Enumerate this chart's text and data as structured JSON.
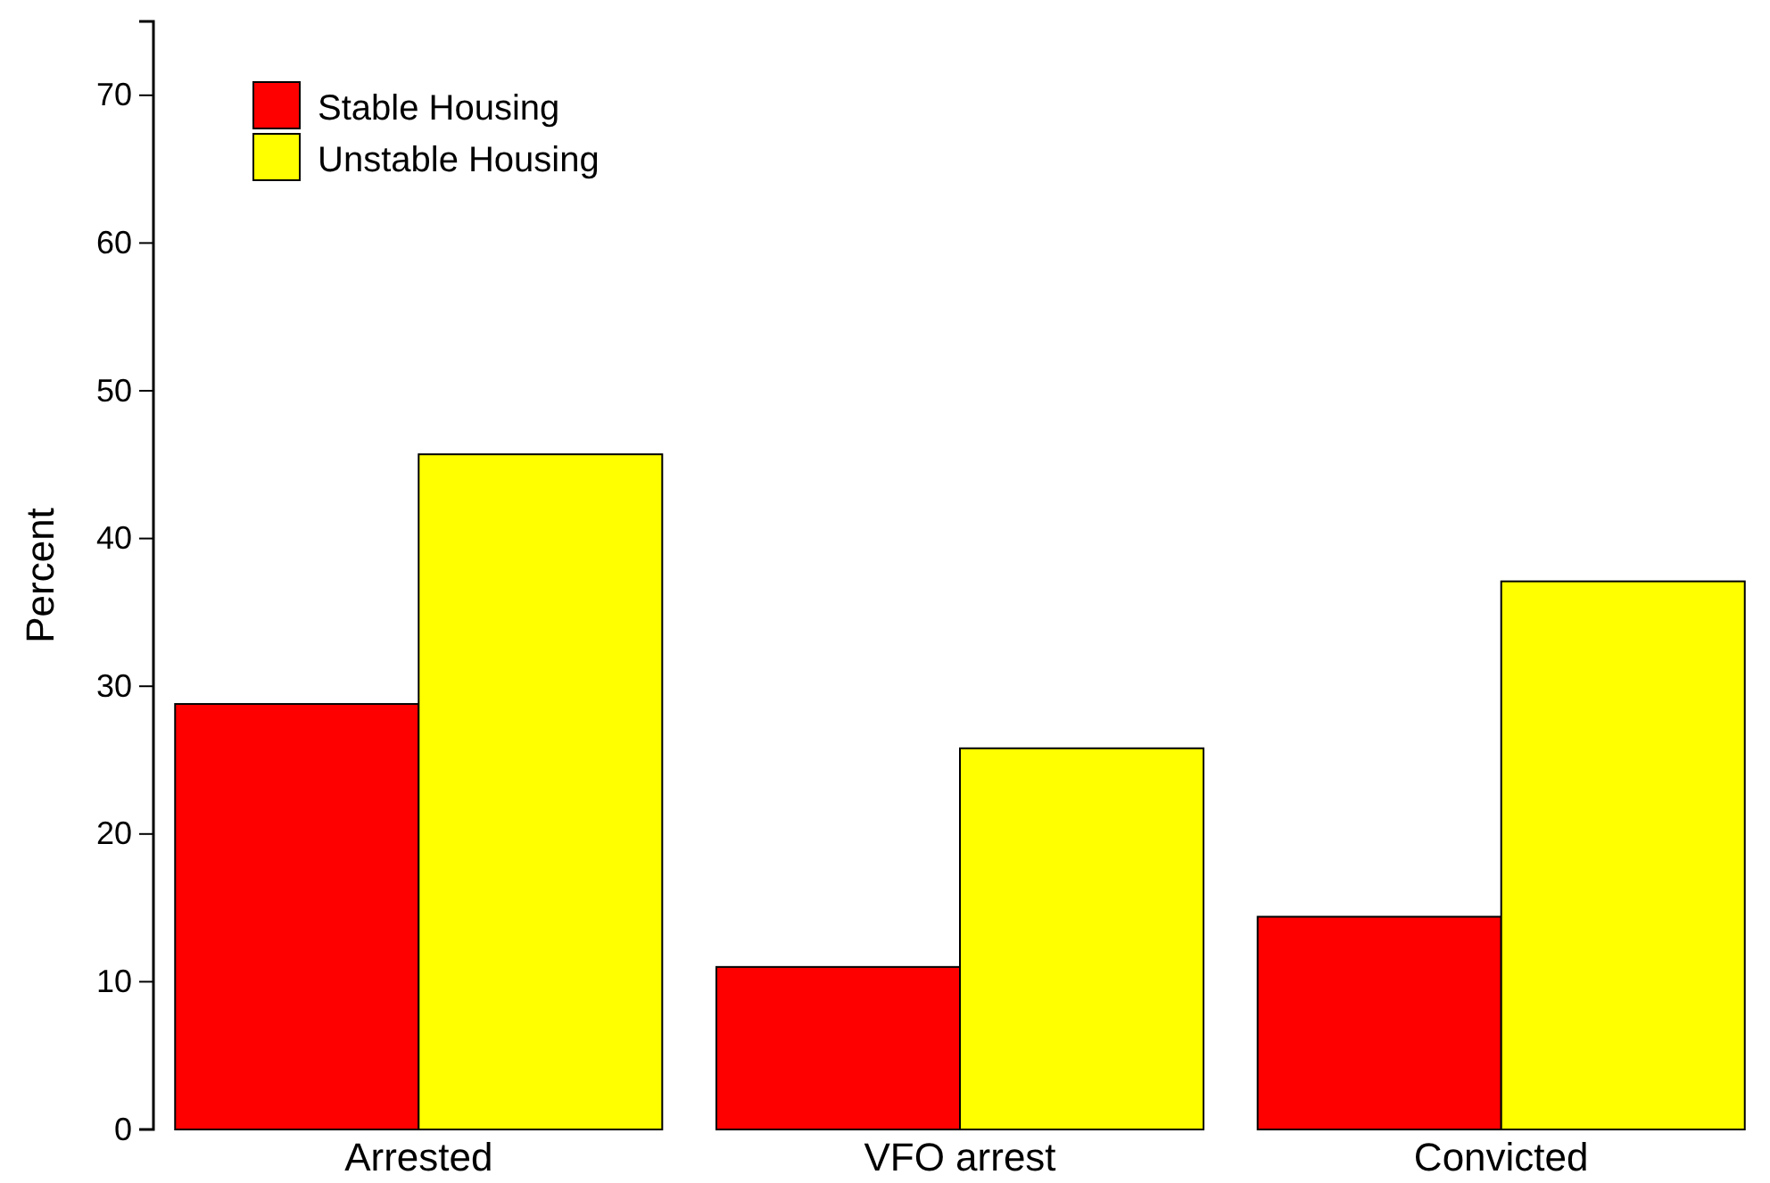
{
  "chart_data": {
    "type": "bar",
    "ylabel": "Percent",
    "categories": [
      "Arrested",
      "VFO arrest",
      "Convicted"
    ],
    "series": [
      {
        "name": "Stable Housing",
        "color": "#ff0000",
        "values": [
          28.8,
          11.0,
          14.4
        ]
      },
      {
        "name": "Unstable Housing",
        "color": "#ffff00",
        "values": [
          45.7,
          25.8,
          37.1
        ]
      }
    ],
    "ylim": [
      0,
      75
    ],
    "yticks": [
      0,
      10,
      20,
      30,
      40,
      50,
      60,
      70
    ],
    "grid": false,
    "legend": "top left"
  }
}
